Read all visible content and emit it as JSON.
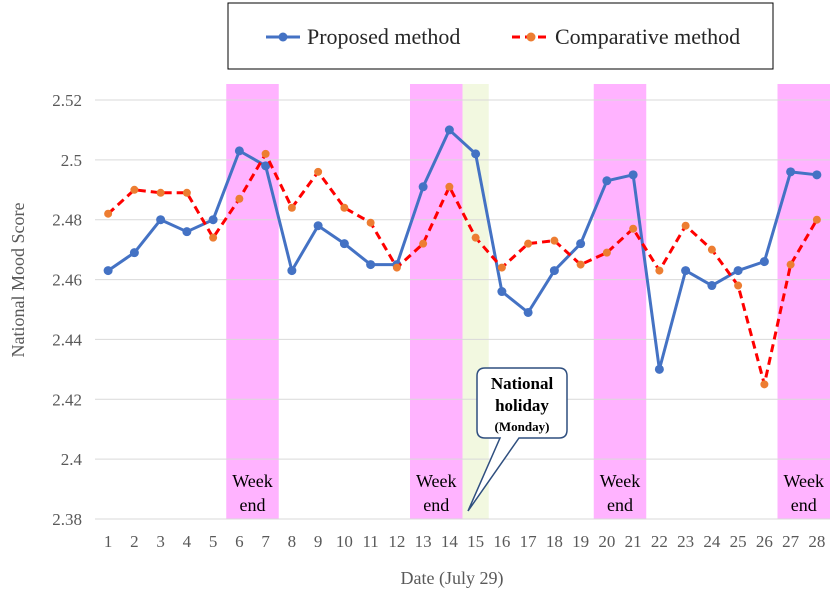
{
  "chart_data": {
    "type": "line",
    "title": "",
    "xlabel": "Date (July 29)",
    "ylabel": "National Mood Score",
    "ylim": [
      2.38,
      2.52
    ],
    "yticks": [
      "2.38",
      "2.4",
      "2.42",
      "2.44",
      "2.46",
      "2.48",
      "2.5",
      "2.52"
    ],
    "x": [
      "1",
      "2",
      "3",
      "4",
      "5",
      "6",
      "7",
      "8",
      "9",
      "10",
      "11",
      "12",
      "13",
      "14",
      "15",
      "16",
      "17",
      "18",
      "19",
      "20",
      "21",
      "22",
      "23",
      "24",
      "25",
      "26",
      "27",
      "28"
    ],
    "series": [
      {
        "name": "Proposed method",
        "color": "#4472c4",
        "style": "solid",
        "values": [
          2.463,
          2.469,
          2.48,
          2.476,
          2.48,
          2.503,
          2.498,
          2.463,
          2.478,
          2.472,
          2.465,
          2.465,
          2.491,
          2.51,
          2.502,
          2.456,
          2.449,
          2.463,
          2.472,
          2.493,
          2.495,
          2.43,
          2.463,
          2.458,
          2.463,
          2.466,
          2.496,
          2.495
        ]
      },
      {
        "name": "Comparative method",
        "color": "#ff0000",
        "marker_color": "#ed7d31",
        "style": "dashed",
        "values": [
          2.482,
          2.49,
          2.489,
          2.489,
          2.474,
          2.487,
          2.502,
          2.484,
          2.496,
          2.484,
          2.479,
          2.464,
          2.472,
          2.491,
          2.474,
          2.464,
          2.472,
          2.473,
          2.465,
          2.469,
          2.477,
          2.463,
          2.478,
          2.47,
          2.458,
          2.425,
          2.465,
          2.48
        ]
      }
    ],
    "bands": [
      {
        "label_line1": "Week",
        "label_line2": "end",
        "from_day": 6,
        "to_day": 7,
        "color": "#ffb3ff"
      },
      {
        "label_line1": "Week",
        "label_line2": "end",
        "from_day": 13,
        "to_day": 14,
        "color": "#ffb3ff"
      },
      {
        "label_line1": "Week",
        "label_line2": "end",
        "from_day": 20,
        "to_day": 21,
        "color": "#ffb3ff"
      },
      {
        "label_line1": "Week",
        "label_line2": "end",
        "from_day": 27,
        "to_day": 28,
        "color": "#ffb3ff"
      }
    ],
    "holiday": {
      "day": 15,
      "color": "#f2f8e0"
    },
    "callout": {
      "line1": "National",
      "line2": "holiday",
      "line3": "(Monday)",
      "border_color": "#2f4f7f"
    },
    "legend_position": "top-right",
    "grid": true
  }
}
